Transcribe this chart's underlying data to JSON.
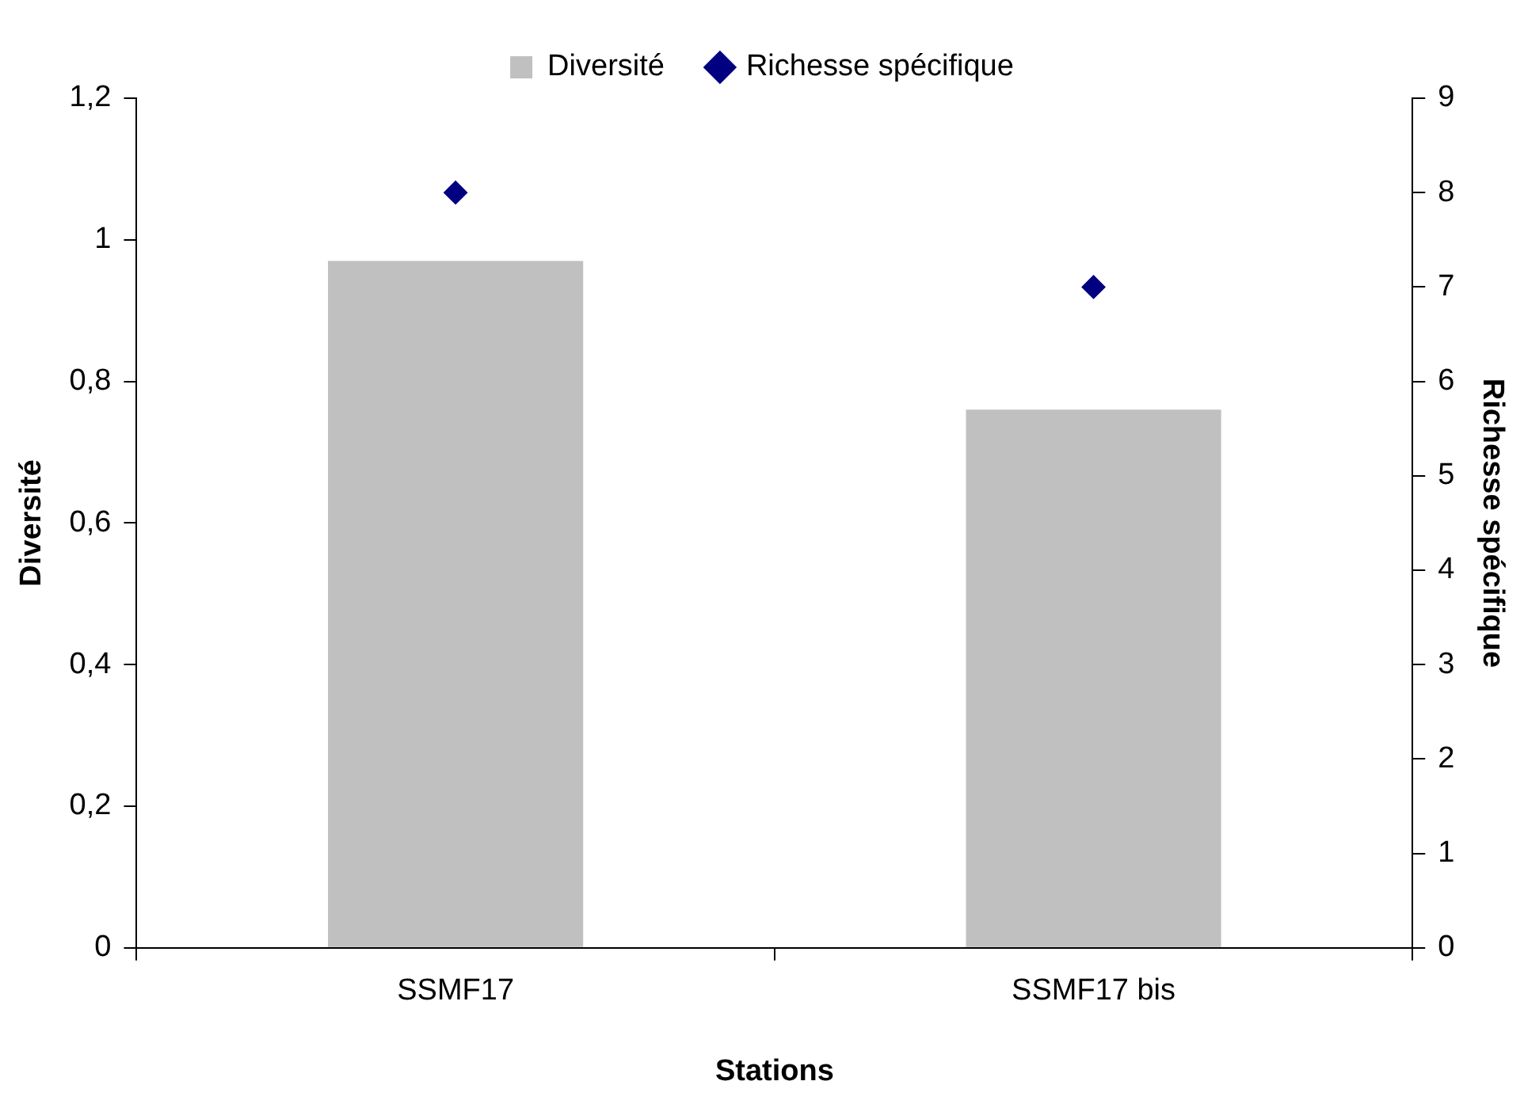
{
  "chart_data": {
    "type": "bar",
    "xlabel": "Stations",
    "ylabel": "Diversité",
    "y2label": "Richesse spécifique",
    "categories": [
      "SSMF17",
      "SSMF17 bis"
    ],
    "series": [
      {
        "name": "Diversité",
        "color": "#c0c0c0",
        "values": [
          0.97,
          0.76
        ]
      },
      {
        "type": "scatter",
        "name": "Richesse spécifique",
        "color": "#000080",
        "values": [
          8,
          7
        ],
        "axis": "y2"
      }
    ],
    "ylim": [
      0,
      1.2
    ],
    "yticks": [
      0,
      {
        "value": 0.2,
        "label": "0,2"
      },
      {
        "value": 0.4,
        "label": "0,4"
      },
      {
        "value": 0.6,
        "label": "0,6"
      },
      {
        "value": 0.8,
        "label": "0,8"
      },
      1,
      {
        "value": 1.2,
        "label": "1,2"
      }
    ],
    "y2lim": [
      0,
      9
    ],
    "y2ticks": [
      0,
      1,
      2,
      3,
      4,
      5,
      6,
      7,
      8,
      9
    ],
    "grid": false,
    "legend": "top",
    "marker": "diamond"
  }
}
